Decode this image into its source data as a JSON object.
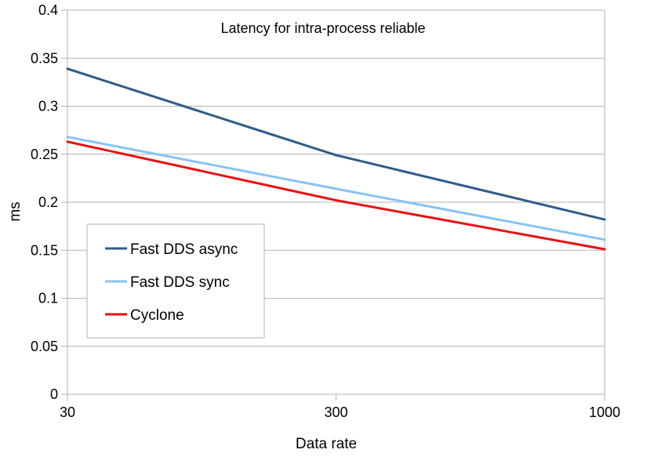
{
  "chart_data": {
    "type": "line",
    "title": "Latency for intra-process reliable",
    "xlabel": "Data rate",
    "ylabel": "ms",
    "categories": [
      "30",
      "300",
      "1000"
    ],
    "ylim": [
      0,
      0.4
    ],
    "yticks": [
      "0",
      "0.05",
      "0.1",
      "0.15",
      "0.2",
      "0.25",
      "0.3",
      "0.35",
      "0.4"
    ],
    "grid": true,
    "legend_position": "lower-left",
    "series": [
      {
        "name": "Fast DDS async",
        "color": "#2e5c8a",
        "values": [
          0.339,
          0.249,
          0.182
        ]
      },
      {
        "name": "Fast DDS sync",
        "color": "#85c4f5",
        "values": [
          0.268,
          0.214,
          0.161
        ]
      },
      {
        "name": "Cyclone",
        "color": "#e8110f",
        "values": [
          0.263,
          0.202,
          0.151
        ]
      }
    ]
  }
}
